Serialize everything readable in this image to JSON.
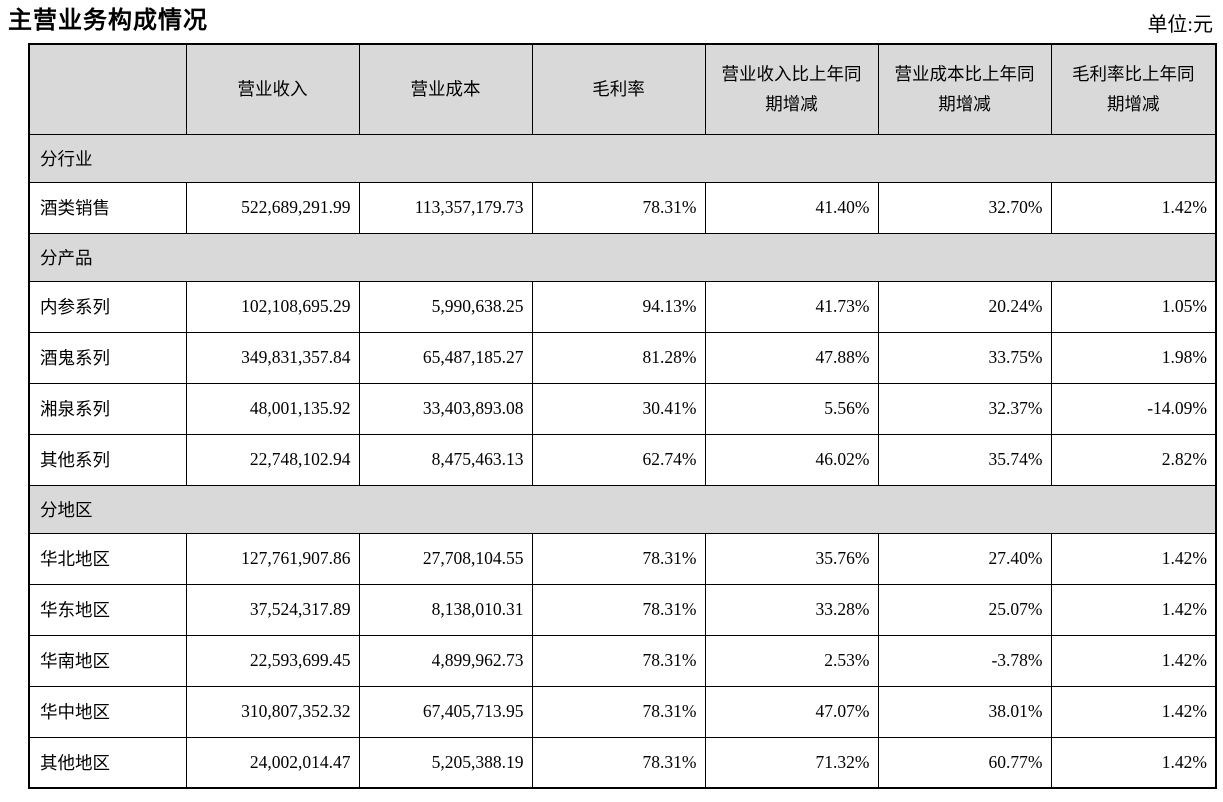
{
  "page": {
    "title": "主营业务构成情况",
    "unit_label": "单位:元"
  },
  "table": {
    "columns": [
      "",
      "营业收入",
      "营业成本",
      "毛利率",
      "营业收入比上年同期增减",
      "营业成本比上年同期增减",
      "毛利率比上年同期增减"
    ],
    "colors": {
      "header_bg": "#d9d9d9",
      "section_bg": "#d9d9d9",
      "border": "#000000",
      "text": "#000000"
    },
    "sections": [
      {
        "label": "分行业",
        "rows": [
          {
            "label": "酒类销售",
            "values": [
              "522,689,291.99",
              "113,357,179.73",
              "78.31%",
              "41.40%",
              "32.70%",
              "1.42%"
            ]
          }
        ]
      },
      {
        "label": "分产品",
        "rows": [
          {
            "label": "内参系列",
            "values": [
              "102,108,695.29",
              "5,990,638.25",
              "94.13%",
              "41.73%",
              "20.24%",
              "1.05%"
            ]
          },
          {
            "label": "酒鬼系列",
            "values": [
              "349,831,357.84",
              "65,487,185.27",
              "81.28%",
              "47.88%",
              "33.75%",
              "1.98%"
            ]
          },
          {
            "label": "湘泉系列",
            "values": [
              "48,001,135.92",
              "33,403,893.08",
              "30.41%",
              "5.56%",
              "32.37%",
              "-14.09%"
            ]
          },
          {
            "label": "其他系列",
            "values": [
              "22,748,102.94",
              "8,475,463.13",
              "62.74%",
              "46.02%",
              "35.74%",
              "2.82%"
            ]
          }
        ]
      },
      {
        "label": "分地区",
        "rows": [
          {
            "label": "华北地区",
            "values": [
              "127,761,907.86",
              "27,708,104.55",
              "78.31%",
              "35.76%",
              "27.40%",
              "1.42%"
            ]
          },
          {
            "label": "华东地区",
            "values": [
              "37,524,317.89",
              "8,138,010.31",
              "78.31%",
              "33.28%",
              "25.07%",
              "1.42%"
            ]
          },
          {
            "label": "华南地区",
            "values": [
              "22,593,699.45",
              "4,899,962.73",
              "78.31%",
              "2.53%",
              "-3.78%",
              "1.42%"
            ]
          },
          {
            "label": "华中地区",
            "values": [
              "310,807,352.32",
              "67,405,713.95",
              "78.31%",
              "47.07%",
              "38.01%",
              "1.42%"
            ]
          },
          {
            "label": "其他地区",
            "values": [
              "24,002,014.47",
              "5,205,388.19",
              "78.31%",
              "71.32%",
              "60.77%",
              "1.42%"
            ]
          }
        ]
      }
    ]
  }
}
